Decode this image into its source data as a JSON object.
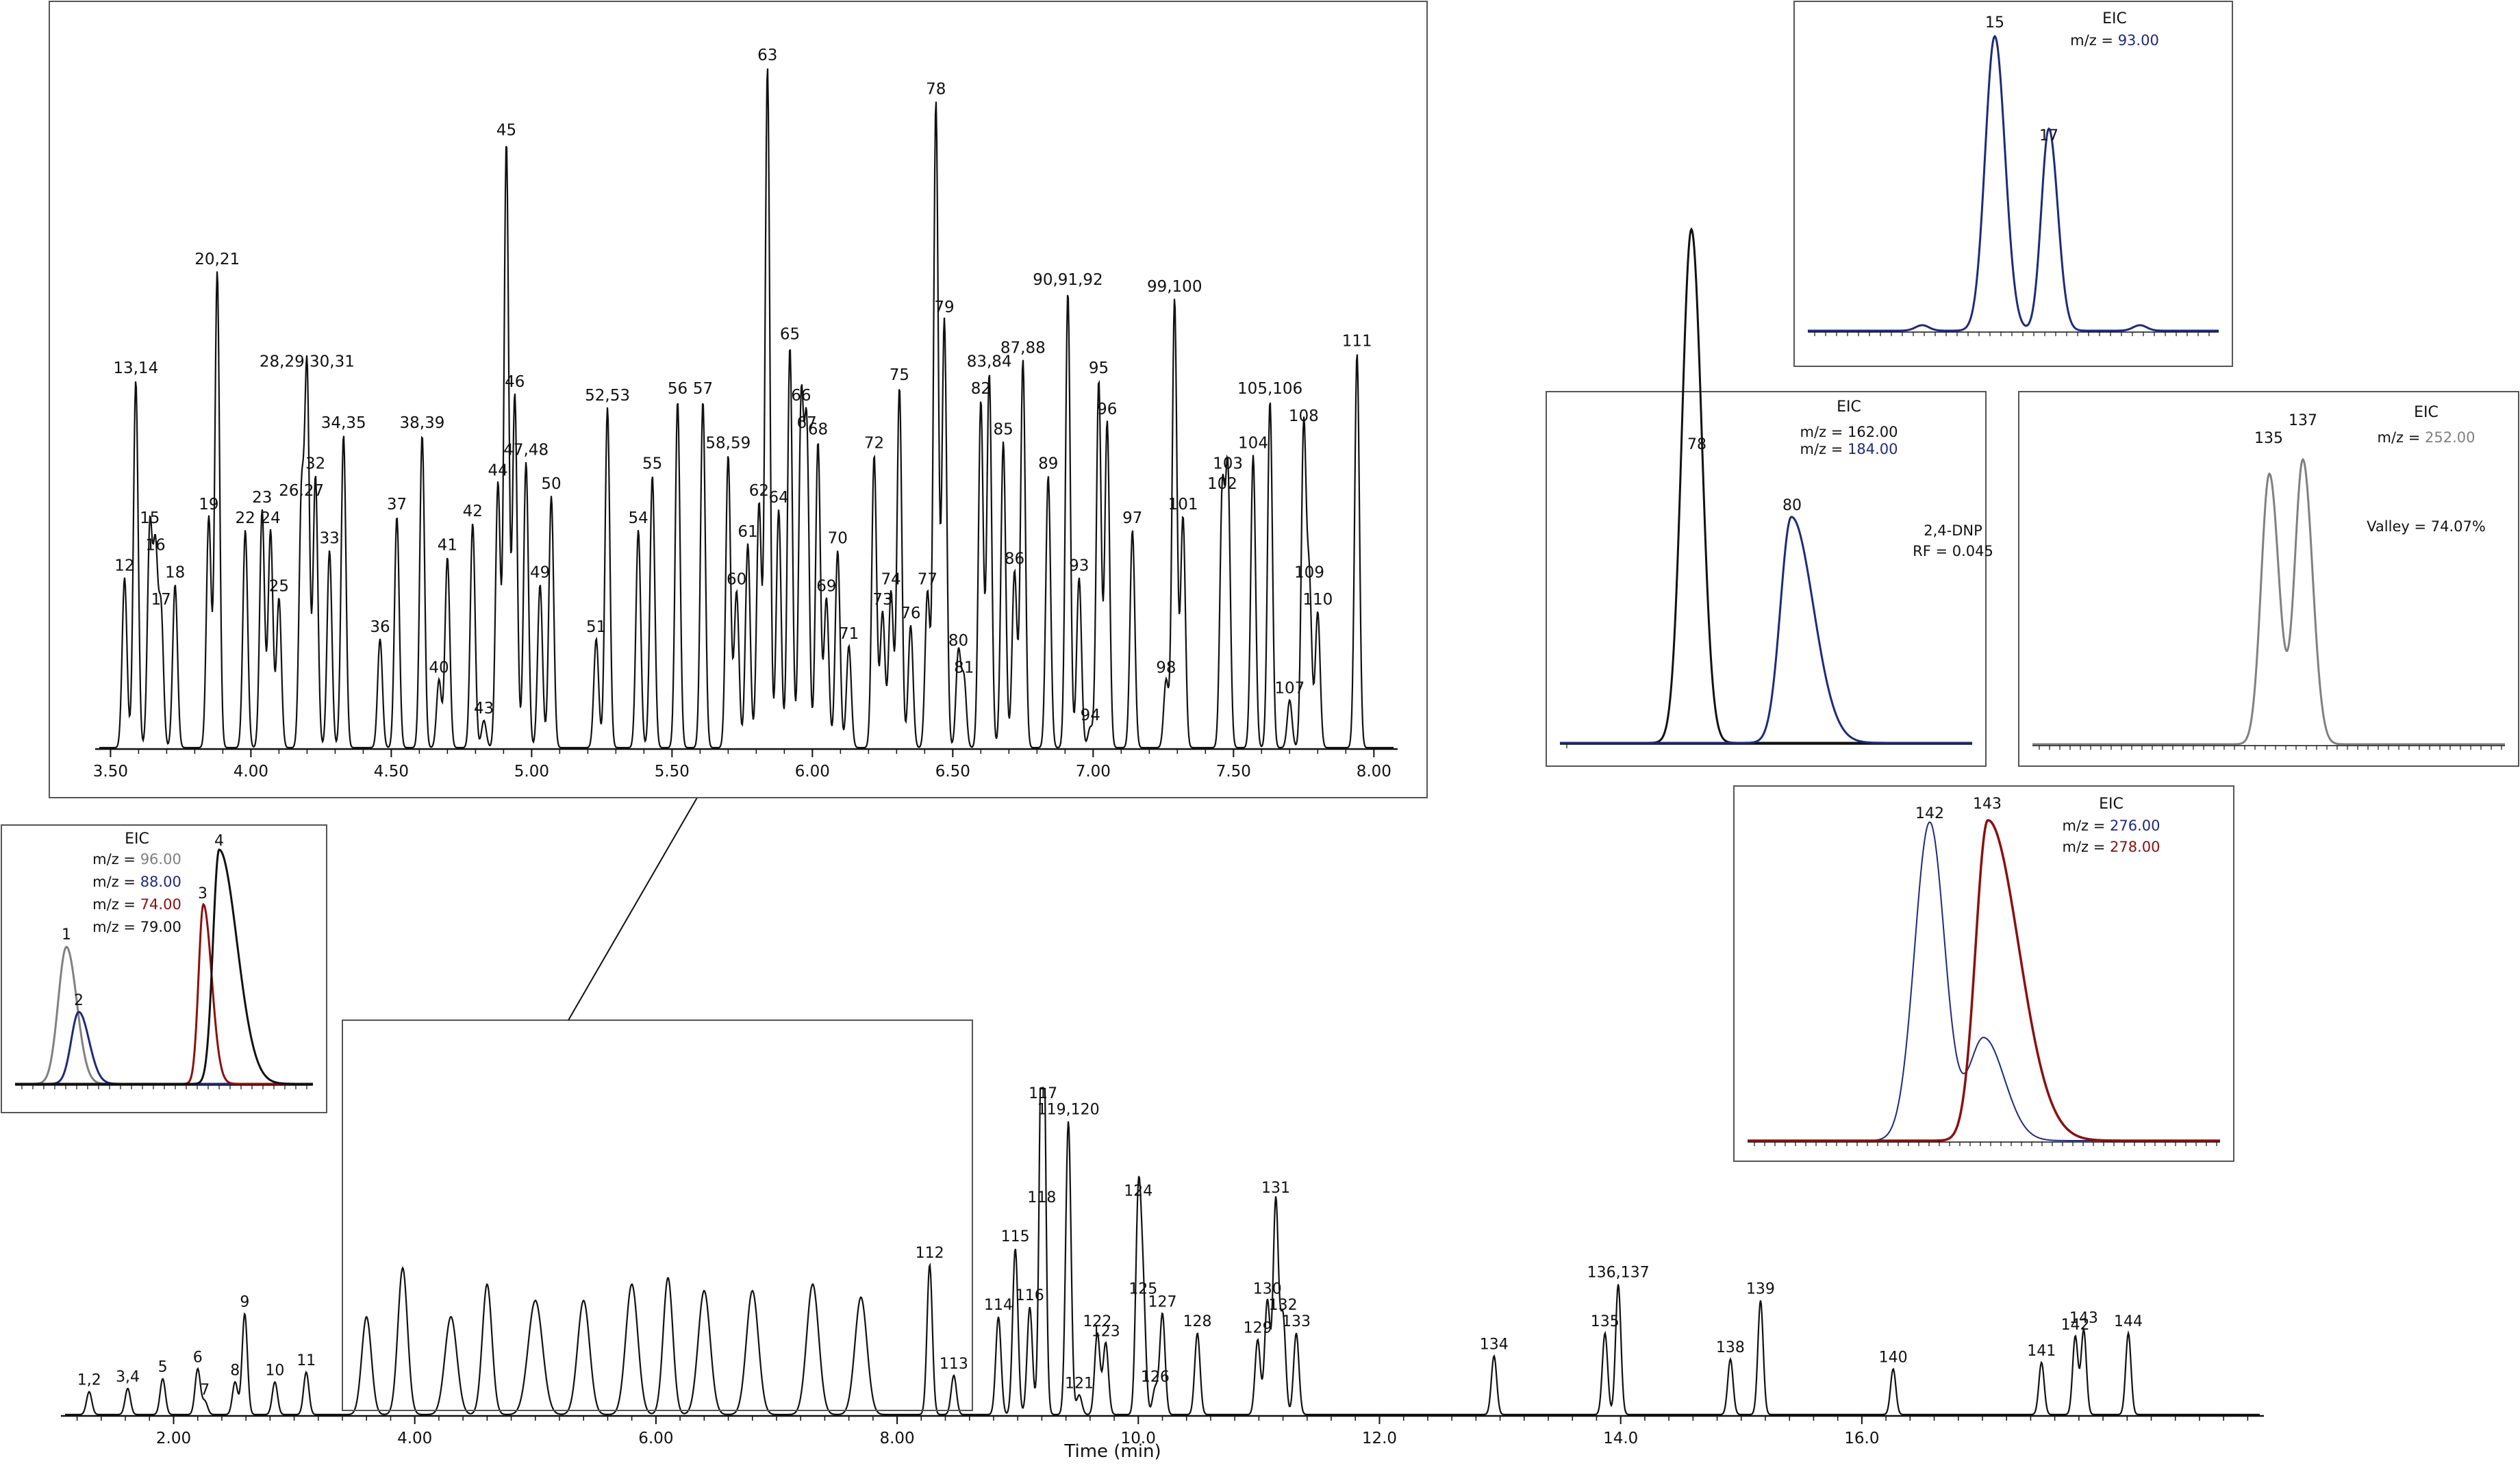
{
  "colors": {
    "black": "#111111",
    "navy": "#1f2a7a",
    "gray": "#808080",
    "darkred": "#8b1010",
    "frame": "#555555"
  },
  "chart_data": [
    {
      "id": "main",
      "type": "line",
      "xlabel": "Time (min)",
      "xlim": [
        1.1,
        19.3
      ],
      "ylim": [
        0,
        100
      ],
      "ticks": [
        "2.00",
        "4.00",
        "6.00",
        "8.00",
        "10.0",
        "12.0",
        "14.0",
        "16.0"
      ],
      "peaks": [
        {
          "label": "1,2",
          "x": 1.3,
          "h": 7
        },
        {
          "label": "3,4",
          "x": 1.62,
          "h": 8
        },
        {
          "label": "5",
          "x": 1.91,
          "h": 11
        },
        {
          "label": "6",
          "x": 2.2,
          "h": 14
        },
        {
          "label": "7",
          "x": 2.26,
          "h": 4
        },
        {
          "label": "8",
          "x": 2.51,
          "h": 10
        },
        {
          "label": "9",
          "x": 2.59,
          "h": 31
        },
        {
          "label": "10",
          "x": 2.84,
          "h": 10
        },
        {
          "label": "11",
          "x": 3.1,
          "h": 13
        },
        {
          "label": "112",
          "x": 8.27,
          "h": 46
        },
        {
          "label": "113",
          "x": 8.47,
          "h": 12
        },
        {
          "label": "114",
          "x": 8.84,
          "h": 30
        },
        {
          "label": "115",
          "x": 8.98,
          "h": 51
        },
        {
          "label": "116",
          "x": 9.1,
          "h": 33
        },
        {
          "label": "117",
          "x": 9.21,
          "h": 95
        },
        {
          "label": "118",
          "x": 9.2,
          "h": 63
        },
        {
          "label": "119,120",
          "x": 9.42,
          "h": 90
        },
        {
          "label": "121",
          "x": 9.51,
          "h": 6
        },
        {
          "label": "122",
          "x": 9.66,
          "h": 25
        },
        {
          "label": "123",
          "x": 9.73,
          "h": 22
        },
        {
          "label": "124",
          "x": 10.0,
          "h": 65
        },
        {
          "label": "125",
          "x": 10.04,
          "h": 35
        },
        {
          "label": "126",
          "x": 10.14,
          "h": 8
        },
        {
          "label": "127",
          "x": 10.2,
          "h": 31
        },
        {
          "label": "128",
          "x": 10.49,
          "h": 25
        },
        {
          "label": "129",
          "x": 10.99,
          "h": 23
        },
        {
          "label": "130",
          "x": 11.07,
          "h": 35
        },
        {
          "label": "131",
          "x": 11.14,
          "h": 66
        },
        {
          "label": "132",
          "x": 11.2,
          "h": 30
        },
        {
          "label": "133",
          "x": 11.31,
          "h": 25
        },
        {
          "label": "134",
          "x": 12.95,
          "h": 18
        },
        {
          "label": "135",
          "x": 13.87,
          "h": 25
        },
        {
          "label": "136,137",
          "x": 13.98,
          "h": 40
        },
        {
          "label": "138",
          "x": 14.91,
          "h": 17
        },
        {
          "label": "139",
          "x": 15.16,
          "h": 35
        },
        {
          "label": "140",
          "x": 16.26,
          "h": 14
        },
        {
          "label": "141",
          "x": 17.49,
          "h": 16
        },
        {
          "label": "142",
          "x": 17.77,
          "h": 24
        },
        {
          "label": "143",
          "x": 17.84,
          "h": 26
        },
        {
          "label": "144",
          "x": 18.21,
          "h": 25
        }
      ]
    },
    {
      "id": "zoom",
      "type": "line",
      "xlim": [
        3.46,
        8.07
      ],
      "ylim": [
        0,
        100
      ],
      "ticks": [
        "3.50",
        "4.00",
        "4.50",
        "5.00",
        "5.50",
        "6.00",
        "6.50",
        "7.00",
        "7.50",
        "8.00"
      ],
      "peaks": [
        {
          "label": "12",
          "x": 3.55,
          "h": 25
        },
        {
          "label": "13,14",
          "x": 3.59,
          "h": 54
        },
        {
          "label": "15",
          "x": 3.64,
          "h": 32
        },
        {
          "label": "16",
          "x": 3.66,
          "h": 28
        },
        {
          "label": "17",
          "x": 3.68,
          "h": 20
        },
        {
          "label": "18",
          "x": 3.73,
          "h": 24
        },
        {
          "label": "19",
          "x": 3.85,
          "h": 34
        },
        {
          "label": "20,21",
          "x": 3.88,
          "h": 70
        },
        {
          "label": "22",
          "x": 3.98,
          "h": 32
        },
        {
          "label": "23",
          "x": 4.04,
          "h": 35
        },
        {
          "label": "24",
          "x": 4.07,
          "h": 32
        },
        {
          "label": "25",
          "x": 4.1,
          "h": 22
        },
        {
          "label": "26,27",
          "x": 4.18,
          "h": 36
        },
        {
          "label": "28,29,30,31",
          "x": 4.2,
          "h": 55
        },
        {
          "label": "32",
          "x": 4.23,
          "h": 40
        },
        {
          "label": "33",
          "x": 4.28,
          "h": 29
        },
        {
          "label": "34,35",
          "x": 4.33,
          "h": 46
        },
        {
          "label": "36",
          "x": 4.46,
          "h": 16
        },
        {
          "label": "37",
          "x": 4.52,
          "h": 34
        },
        {
          "label": "38,39",
          "x": 4.61,
          "h": 46
        },
        {
          "label": "40",
          "x": 4.67,
          "h": 10
        },
        {
          "label": "41",
          "x": 4.7,
          "h": 28
        },
        {
          "label": "42",
          "x": 4.79,
          "h": 33
        },
        {
          "label": "43",
          "x": 4.83,
          "h": 4
        },
        {
          "label": "44",
          "x": 4.88,
          "h": 39
        },
        {
          "label": "45",
          "x": 4.91,
          "h": 89
        },
        {
          "label": "46",
          "x": 4.94,
          "h": 52
        },
        {
          "label": "47,48",
          "x": 4.98,
          "h": 42
        },
        {
          "label": "49",
          "x": 5.03,
          "h": 24
        },
        {
          "label": "50",
          "x": 5.07,
          "h": 37
        },
        {
          "label": "51",
          "x": 5.23,
          "h": 16
        },
        {
          "label": "52,53",
          "x": 5.27,
          "h": 50
        },
        {
          "label": "54",
          "x": 5.38,
          "h": 32
        },
        {
          "label": "55",
          "x": 5.43,
          "h": 40
        },
        {
          "label": "56",
          "x": 5.52,
          "h": 51
        },
        {
          "label": "57",
          "x": 5.61,
          "h": 51
        },
        {
          "label": "58,59",
          "x": 5.7,
          "h": 43
        },
        {
          "label": "60",
          "x": 5.73,
          "h": 23
        },
        {
          "label": "61",
          "x": 5.77,
          "h": 30
        },
        {
          "label": "62",
          "x": 5.81,
          "h": 36
        },
        {
          "label": "63",
          "x": 5.84,
          "h": 100
        },
        {
          "label": "64",
          "x": 5.88,
          "h": 35
        },
        {
          "label": "65",
          "x": 5.92,
          "h": 59
        },
        {
          "label": "66",
          "x": 5.96,
          "h": 50
        },
        {
          "label": "67",
          "x": 5.98,
          "h": 46
        },
        {
          "label": "68",
          "x": 6.02,
          "h": 45
        },
        {
          "label": "69",
          "x": 6.05,
          "h": 22
        },
        {
          "label": "70",
          "x": 6.09,
          "h": 29
        },
        {
          "label": "71",
          "x": 6.13,
          "h": 15
        },
        {
          "label": "72",
          "x": 6.22,
          "h": 43
        },
        {
          "label": "73",
          "x": 6.25,
          "h": 20
        },
        {
          "label": "74",
          "x": 6.28,
          "h": 23
        },
        {
          "label": "75",
          "x": 6.31,
          "h": 53
        },
        {
          "label": "76",
          "x": 6.35,
          "h": 18
        },
        {
          "label": "77",
          "x": 6.41,
          "h": 23
        },
        {
          "label": "78",
          "x": 6.44,
          "h": 95
        },
        {
          "label": "79",
          "x": 6.47,
          "h": 63
        },
        {
          "label": "80",
          "x": 6.52,
          "h": 14
        },
        {
          "label": "81",
          "x": 6.54,
          "h": 10
        },
        {
          "label": "82",
          "x": 6.6,
          "h": 51
        },
        {
          "label": "83,84",
          "x": 6.63,
          "h": 55
        },
        {
          "label": "85",
          "x": 6.68,
          "h": 45
        },
        {
          "label": "86",
          "x": 6.72,
          "h": 26
        },
        {
          "label": "87,88",
          "x": 6.75,
          "h": 57
        },
        {
          "label": "89",
          "x": 6.84,
          "h": 40
        },
        {
          "label": "90,91,92",
          "x": 6.91,
          "h": 67
        },
        {
          "label": "93",
          "x": 6.95,
          "h": 25
        },
        {
          "label": "94",
          "x": 6.99,
          "h": 3
        },
        {
          "label": "95",
          "x": 7.02,
          "h": 54
        },
        {
          "label": "96",
          "x": 7.05,
          "h": 48
        },
        {
          "label": "97",
          "x": 7.14,
          "h": 32
        },
        {
          "label": "98",
          "x": 7.26,
          "h": 10
        },
        {
          "label": "99,100",
          "x": 7.29,
          "h": 66
        },
        {
          "label": "101",
          "x": 7.32,
          "h": 34
        },
        {
          "label": "102",
          "x": 7.46,
          "h": 37
        },
        {
          "label": "103",
          "x": 7.48,
          "h": 40
        },
        {
          "label": "104",
          "x": 7.57,
          "h": 43
        },
        {
          "label": "105,106",
          "x": 7.63,
          "h": 51
        },
        {
          "label": "107",
          "x": 7.7,
          "h": 7
        },
        {
          "label": "108",
          "x": 7.75,
          "h": 47
        },
        {
          "label": "109",
          "x": 7.77,
          "h": 24
        },
        {
          "label": "110",
          "x": 7.8,
          "h": 20
        },
        {
          "label": "111",
          "x": 7.94,
          "h": 58
        }
      ]
    }
  ],
  "eic_panels": [
    {
      "id": "eic-1-4",
      "title": "EIC",
      "mz": [
        {
          "text": "m/z = ",
          "value": "96.00",
          "color": "#808080"
        },
        {
          "text": "m/z = ",
          "value": "88.00",
          "color": "#1f2a7a"
        },
        {
          "text": "m/z = ",
          "value": "74.00",
          "color": "#8b1010"
        },
        {
          "text": "m/z = ",
          "value": "79.00",
          "color": "#111111"
        }
      ],
      "peaks": [
        {
          "label": "1",
          "color": "#808080"
        },
        {
          "label": "2",
          "color": "#1f2a7a"
        },
        {
          "label": "3",
          "color": "#8b1010"
        },
        {
          "label": "4",
          "color": "#111111"
        }
      ]
    },
    {
      "id": "eic-15-17",
      "title": "EIC",
      "mz": [
        {
          "text": "m/z = ",
          "value": "93.00",
          "color": "#1f2a7a"
        }
      ],
      "peaks": [
        {
          "label": "15"
        },
        {
          "label": "17"
        }
      ]
    },
    {
      "id": "eic-78-80",
      "title": "EIC",
      "mz": [
        {
          "text": "m/z = ",
          "value": "162.00",
          "color": "#111111"
        },
        {
          "text": "m/z = ",
          "value": "184.00",
          "color": "#1f2a7a"
        }
      ],
      "peaks": [
        {
          "label": "78"
        },
        {
          "label": "80"
        }
      ],
      "note": [
        "2,4-DNP",
        "RF = 0.045"
      ]
    },
    {
      "id": "eic-135-137",
      "title": "EIC",
      "mz": [
        {
          "text": "m/z = ",
          "value": "252.00",
          "color": "#808080"
        }
      ],
      "peaks": [
        {
          "label": "135"
        },
        {
          "label": "137"
        }
      ],
      "note": [
        "Valley = 74.07%"
      ]
    },
    {
      "id": "eic-142-143",
      "title": "EIC",
      "mz": [
        {
          "text": "m/z = ",
          "value": "276.00",
          "color": "#1f2a7a"
        },
        {
          "text": "m/z = ",
          "value": "278.00",
          "color": "#8b1010"
        }
      ],
      "peaks": [
        {
          "label": "142"
        },
        {
          "label": "143"
        }
      ]
    }
  ]
}
